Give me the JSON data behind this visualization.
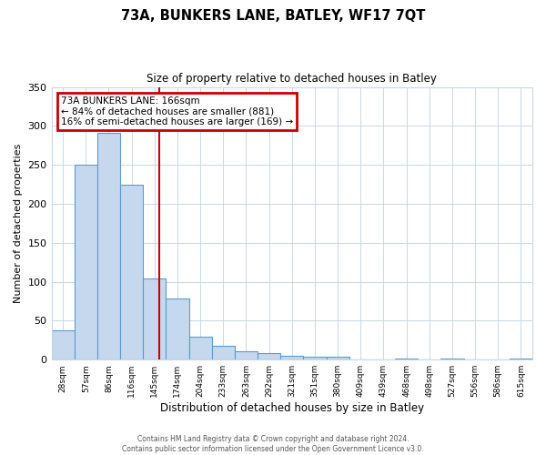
{
  "title": "73A, BUNKERS LANE, BATLEY, WF17 7QT",
  "subtitle": "Size of property relative to detached houses in Batley",
  "xlabel": "Distribution of detached houses by size in Batley",
  "ylabel": "Number of detached properties",
  "bar_labels": [
    "28sqm",
    "57sqm",
    "86sqm",
    "116sqm",
    "145sqm",
    "174sqm",
    "204sqm",
    "233sqm",
    "263sqm",
    "292sqm",
    "321sqm",
    "351sqm",
    "380sqm",
    "409sqm",
    "439sqm",
    "468sqm",
    "498sqm",
    "527sqm",
    "556sqm",
    "586sqm",
    "615sqm"
  ],
  "bar_values": [
    38,
    250,
    291,
    224,
    104,
    78,
    29,
    18,
    11,
    9,
    5,
    4,
    4,
    0,
    0,
    1,
    0,
    1,
    0,
    0,
    1
  ],
  "bar_color": "#c5d8ed",
  "bar_edge_color": "#5b9bd5",
  "ylim": [
    0,
    350
  ],
  "yticks": [
    0,
    50,
    100,
    150,
    200,
    250,
    300,
    350
  ],
  "property_label": "73A BUNKERS LANE: 166sqm",
  "annotation_line1": "← 84% of detached houses are smaller (881)",
  "annotation_line2": "16% of semi-detached houses are larger (169) →",
  "vline_color": "#cc0000",
  "annotation_box_color": "#cc0000",
  "footer_line1": "Contains HM Land Registry data © Crown copyright and database right 2024.",
  "footer_line2": "Contains public sector information licensed under the Open Government Licence v3.0.",
  "background_color": "#ffffff",
  "grid_color": "#c8d8e8",
  "vline_x": 4.224
}
